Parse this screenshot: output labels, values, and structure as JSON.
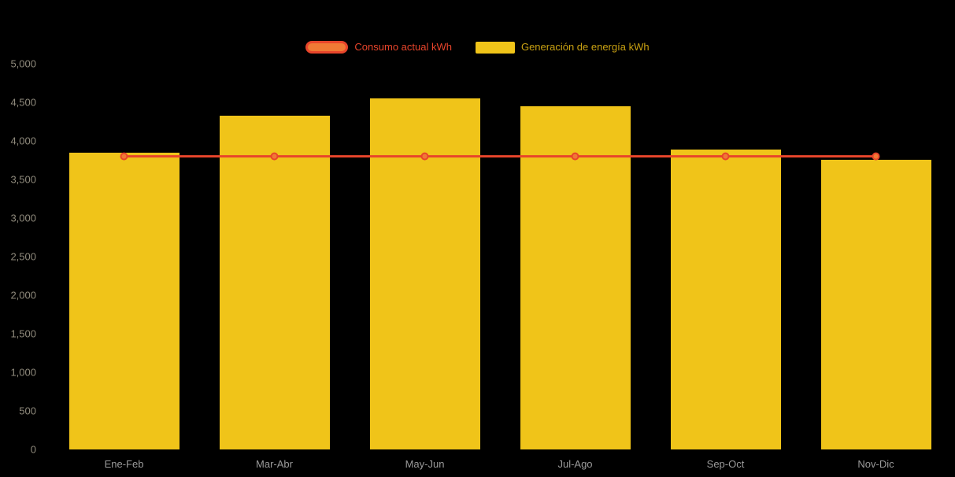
{
  "chart_data": {
    "type": "bar",
    "categories": [
      "Ene-Feb",
      "Mar-Abr",
      "May-Jun",
      "Jul-Ago",
      "Sep-Oct",
      "Nov-Dic"
    ],
    "series": [
      {
        "name": "Consumo actual kWh",
        "type": "line",
        "values": [
          3800,
          3800,
          3800,
          3800,
          3800,
          3800
        ]
      },
      {
        "name": "Generación de energía kWh",
        "type": "bar",
        "values": [
          3850,
          4330,
          4550,
          4450,
          3890,
          3760
        ]
      }
    ],
    "ylim": [
      0,
      5000
    ],
    "yticks": [
      0,
      500,
      1000,
      1500,
      2000,
      2500,
      3000,
      3500,
      4000,
      4500,
      5000
    ],
    "ytick_labels": [
      "0",
      "500",
      "1,000",
      "1,500",
      "2,000",
      "2,500",
      "3,000",
      "3,500",
      "4,000",
      "4,500",
      "5,000"
    ],
    "xlabel": "",
    "ylabel": "",
    "title": "",
    "grid": false,
    "legend_position": "top",
    "background": "#000000",
    "colors": {
      "bar": "#F0C419",
      "line": "#E8452B",
      "line_marker_fill": "#F07A35",
      "ytick_text": "#8F8A7C",
      "xtick_text": "#9B9B9B"
    }
  },
  "legend": {
    "items": [
      {
        "label": "Consumo actual kWh"
      },
      {
        "label": "Generación de energía kWh"
      }
    ]
  }
}
